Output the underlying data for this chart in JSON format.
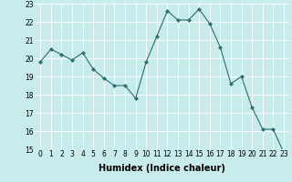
{
  "x": [
    0,
    1,
    2,
    3,
    4,
    5,
    6,
    7,
    8,
    9,
    10,
    11,
    12,
    13,
    14,
    15,
    16,
    17,
    18,
    19,
    20,
    21,
    22,
    23
  ],
  "y": [
    19.8,
    20.5,
    20.2,
    19.9,
    20.3,
    19.4,
    18.9,
    18.5,
    18.5,
    17.8,
    19.8,
    21.2,
    22.6,
    22.1,
    22.1,
    22.7,
    21.9,
    20.6,
    18.6,
    19.0,
    17.3,
    16.1,
    16.1,
    14.8
  ],
  "line_color": "#2d6e6e",
  "marker": "D",
  "marker_size": 2.0,
  "bg_color": "#c8ecec",
  "grid_color": "#ffffff",
  "xlabel": "Humidex (Indice chaleur)",
  "ylim": [
    15,
    23
  ],
  "xlim": [
    -0.5,
    23.5
  ],
  "yticks": [
    15,
    16,
    17,
    18,
    19,
    20,
    21,
    22,
    23
  ],
  "xticks": [
    0,
    1,
    2,
    3,
    4,
    5,
    6,
    7,
    8,
    9,
    10,
    11,
    12,
    13,
    14,
    15,
    16,
    17,
    18,
    19,
    20,
    21,
    22,
    23
  ],
  "tick_label_fontsize": 5.5,
  "xlabel_fontsize": 7.0
}
